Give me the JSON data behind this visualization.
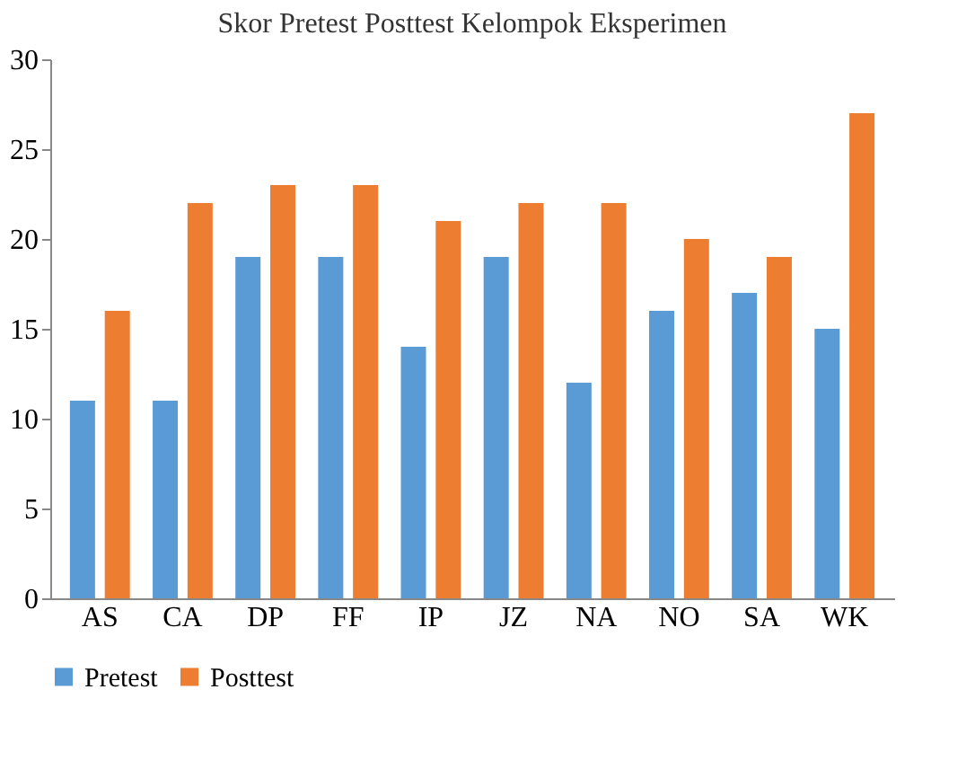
{
  "chart_data": {
    "type": "bar",
    "title": "Skor Pretest Posttest Kelompok Eksperimen",
    "categories": [
      "AS",
      "CA",
      "DP",
      "FF",
      "IP",
      "JZ",
      "NA",
      "NO",
      "SA",
      "WK"
    ],
    "series": [
      {
        "name": "Pretest",
        "color": "#5b9bd5",
        "values": [
          11,
          11,
          19,
          19,
          14,
          19,
          12,
          16,
          17,
          15
        ]
      },
      {
        "name": "Posttest",
        "color": "#ed7d31",
        "values": [
          16,
          22,
          23,
          23,
          21,
          22,
          22,
          20,
          19,
          27
        ]
      }
    ],
    "ylim": [
      0,
      30
    ],
    "yticks": [
      0,
      5,
      10,
      15,
      20,
      25,
      30
    ],
    "grid": false,
    "legend": "bottom"
  }
}
